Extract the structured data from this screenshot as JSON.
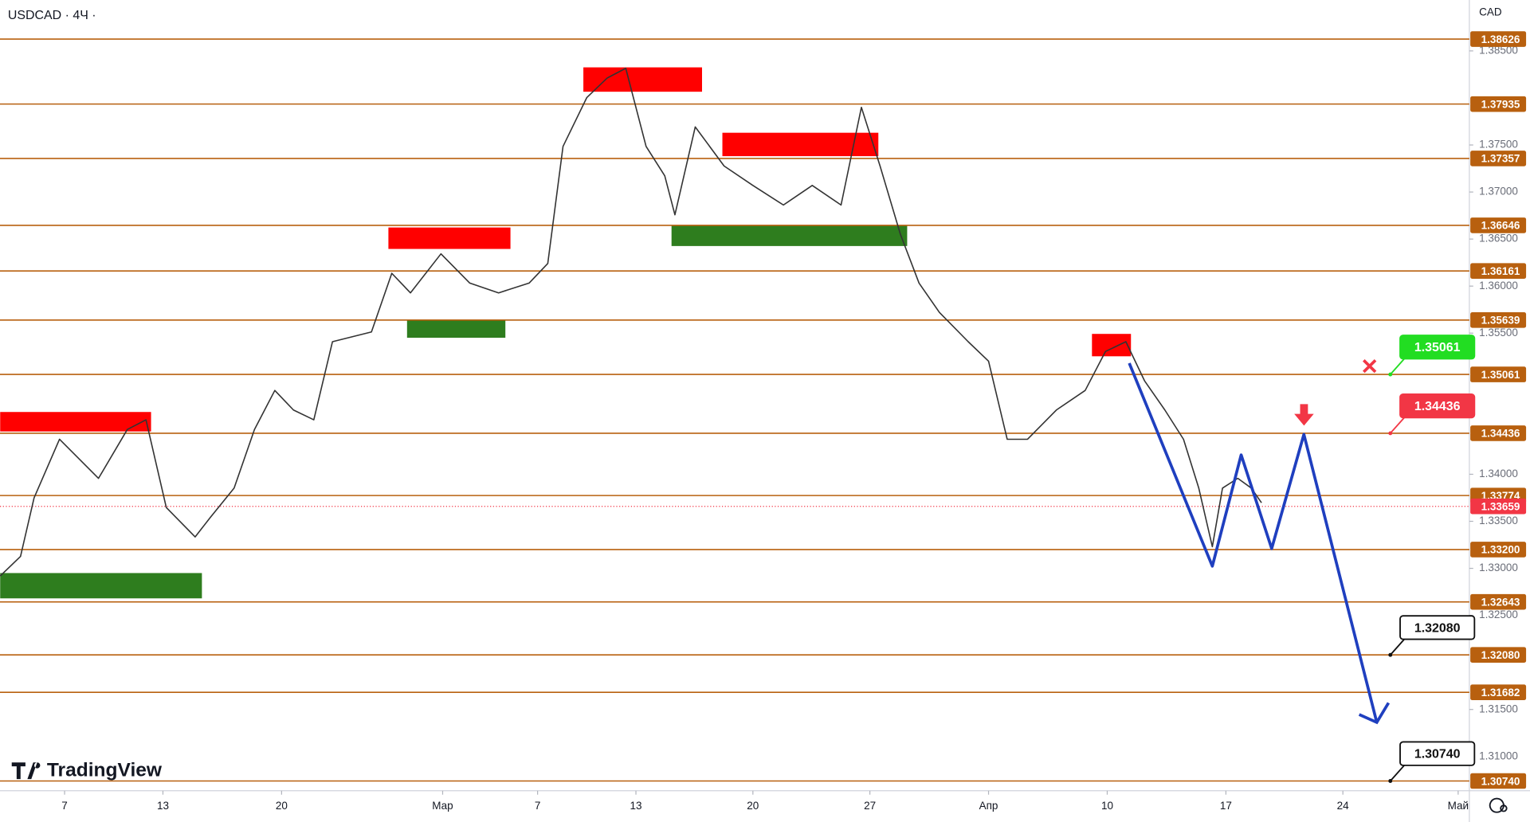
{
  "chart_data": {
    "type": "line",
    "title": "USDCAD · 4Ч ·",
    "currency": "CAD",
    "brand": "TradingView",
    "xlim": [
      -3.81,
      82.86
    ],
    "ylim": [
      1.30636,
      1.39041
    ],
    "xticks": [
      {
        "value": 0,
        "label": "7"
      },
      {
        "value": 5.8,
        "label": "13"
      },
      {
        "value": 12.8,
        "label": "20"
      },
      {
        "value": 22.3,
        "label": "Мар"
      },
      {
        "value": 27.9,
        "label": "7"
      },
      {
        "value": 33.7,
        "label": "13"
      },
      {
        "value": 40.6,
        "label": "20"
      },
      {
        "value": 47.5,
        "label": "27"
      },
      {
        "value": 54.5,
        "label": "Апр"
      },
      {
        "value": 61.5,
        "label": "10"
      },
      {
        "value": 68.5,
        "label": "17"
      },
      {
        "value": 75.4,
        "label": "24"
      },
      {
        "value": 82.2,
        "label": "Май"
      }
    ],
    "yticks": [
      {
        "value": 1.385,
        "label": "1.38500"
      },
      {
        "value": 1.375,
        "label": "1.37500"
      },
      {
        "value": 1.37,
        "label": "1.37000"
      },
      {
        "value": 1.365,
        "label": "1.36500"
      },
      {
        "value": 1.36,
        "label": "1.36000"
      },
      {
        "value": 1.355,
        "label": "1.35500"
      },
      {
        "value": 1.34,
        "label": "1.34000"
      },
      {
        "value": 1.335,
        "label": "1.33500"
      },
      {
        "value": 1.33,
        "label": "1.33000"
      },
      {
        "value": 1.325,
        "label": "1.32500"
      },
      {
        "value": 1.315,
        "label": "1.31500"
      },
      {
        "value": 1.31,
        "label": "1.31000"
      }
    ],
    "levels": {
      "color": "#b8600f",
      "values": [
        1.38626,
        1.37935,
        1.37357,
        1.36646,
        1.36161,
        1.35639,
        1.35061,
        1.34436,
        1.33774,
        {
          "value": 1.332,
          "label": "1.33200"
        },
        1.32643,
        {
          "value": 1.3208,
          "label": "1.32080"
        },
        1.31682,
        {
          "value": 1.3074,
          "label": "1.30740"
        }
      ]
    },
    "last_price": {
      "color": "#f23645",
      "value": 1.33659
    },
    "series": [
      {
        "color": "#333333",
        "x": [
          -3.8,
          -2.6,
          -1.8,
          -0.3,
          2.0,
          3.7,
          4.8,
          6.0,
          7.7,
          8.6,
          10.0,
          11.2,
          12.4,
          13.5,
          14.7,
          15.8,
          18.1,
          19.3,
          20.4,
          22.2,
          23.9,
          25.6,
          27.4,
          28.5,
          29.4,
          30.8,
          32.0,
          33.1,
          34.3,
          35.4,
          36.0,
          37.2,
          38.9,
          40.6,
          42.4,
          44.1,
          45.8,
          47.0,
          48.1,
          49.3,
          50.4,
          51.6,
          53.3,
          54.5,
          55.6,
          56.8,
          58.5,
          60.2,
          61.4,
          62.6,
          63.7,
          64.9,
          66.0,
          66.9,
          67.7,
          68.3,
          69.2,
          70.0,
          70.6
        ],
        "values": [
          1.32919,
          1.33127,
          1.33749,
          1.34372,
          1.33957,
          1.34476,
          1.34579,
          1.33646,
          1.33334,
          1.33542,
          1.33853,
          1.34476,
          1.34891,
          1.34683,
          1.34579,
          1.35409,
          1.35513,
          1.36136,
          1.35928,
          1.36343,
          1.36032,
          1.35928,
          1.36032,
          1.3624,
          1.37485,
          1.38003,
          1.38211,
          1.38315,
          1.37485,
          1.37173,
          1.36758,
          1.37692,
          1.37277,
          1.3707,
          1.36862,
          1.3707,
          1.36862,
          1.379,
          1.37277,
          1.36551,
          1.36032,
          1.35721,
          1.35409,
          1.35202,
          1.34372,
          1.34372,
          1.34683,
          1.34891,
          1.35306,
          1.35409,
          1.34994,
          1.34683,
          1.34372,
          1.33853,
          1.3323,
          1.33853,
          1.33957,
          1.33853,
          1.33697
        ]
      },
      {
        "color": "#1f3fbf",
        "x": [
          62.8,
          67.7,
          69.4,
          71.2,
          73.1,
          77.4
        ],
        "values": [
          1.35181,
          1.33023,
          1.34206,
          1.3321,
          1.34424,
          1.31363
        ]
      }
    ],
    "zones": [
      {
        "color": "#ff0000",
        "x": [
          -3.8,
          5.1
        ],
        "values": [
          1.34455,
          1.34662
        ]
      },
      {
        "color": "#2e7d1e",
        "x": [
          -3.8,
          8.1
        ],
        "values": [
          1.32681,
          1.3295
        ]
      },
      {
        "color": "#ff0000",
        "x": [
          19.1,
          26.3
        ],
        "values": [
          1.36395,
          1.36623
        ]
      },
      {
        "color": "#2e7d1e",
        "x": [
          20.2,
          26.0
        ],
        "values": [
          1.35451,
          1.35638
        ]
      },
      {
        "color": "#ff0000",
        "x": [
          30.6,
          37.6
        ],
        "values": [
          1.38066,
          1.38325
        ]
      },
      {
        "color": "#ff0000",
        "x": [
          38.8,
          48.0
        ],
        "values": [
          1.37381,
          1.3763
        ]
      },
      {
        "color": "#2e7d1e",
        "x": [
          35.8,
          49.7
        ],
        "values": [
          1.36426,
          1.36644
        ]
      },
      {
        "color": "#ff0000",
        "x": [
          60.6,
          62.9
        ],
        "values": [
          1.35254,
          1.35492
        ]
      }
    ],
    "annotations": [
      {
        "text": "1.35061",
        "color": "#22dd22",
        "x": 78.2
      },
      {
        "text": "1.34436",
        "color": "#f23645",
        "x": 78.2
      },
      {
        "text": "1.32080",
        "color": "#111111",
        "x": 78.2
      },
      {
        "text": "1.30740",
        "color": "#111111",
        "x": 78.2
      }
    ]
  }
}
